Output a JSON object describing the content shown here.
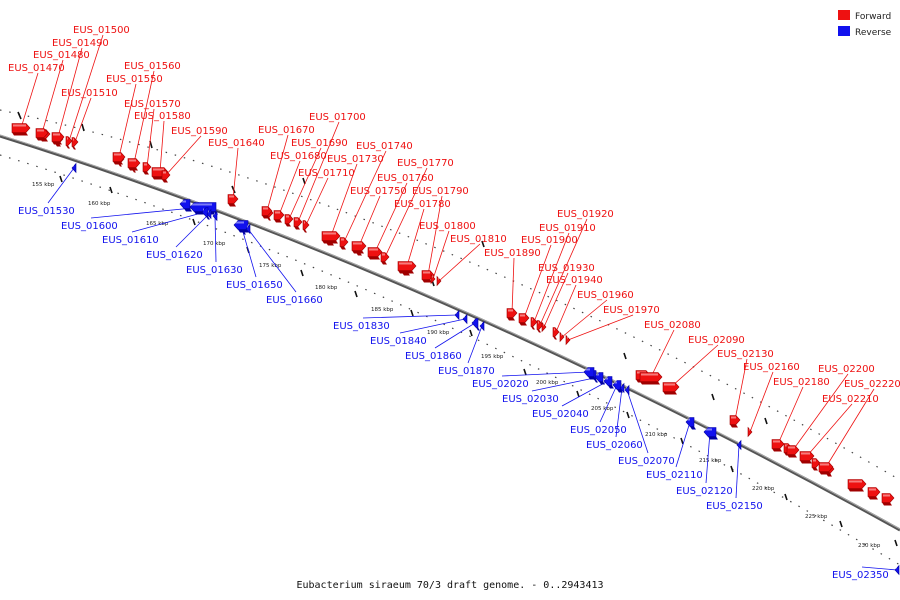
{
  "legend": {
    "forward": {
      "label": "Forward",
      "color": "#ee1111"
    },
    "reverse": {
      "label": "Reverse",
      "color": "#1111ee"
    }
  },
  "caption": "Eubacterium siraeum 70/3 draft genome. - 0..2943413",
  "ticks": [
    {
      "kbp": 155,
      "label": "155 kbp"
    },
    {
      "kbp": 160,
      "label": "160 kbp"
    },
    {
      "kbp": 165,
      "label": "165 kbp"
    },
    {
      "kbp": 170,
      "label": "170 kbp"
    },
    {
      "kbp": 175,
      "label": "175 kbp"
    },
    {
      "kbp": 180,
      "label": "180 kbp"
    },
    {
      "kbp": 185,
      "label": "185 kbp"
    },
    {
      "kbp": 190,
      "label": "190 kbp"
    },
    {
      "kbp": 195,
      "label": "195 kbp"
    },
    {
      "kbp": 200,
      "label": "200 kbp"
    },
    {
      "kbp": 205,
      "label": "205 kbp"
    },
    {
      "kbp": 210,
      "label": "210 kbp"
    },
    {
      "kbp": 215,
      "label": "215 kbp"
    },
    {
      "kbp": 220,
      "label": "220 kbp"
    },
    {
      "kbp": 225,
      "label": "225 kbp"
    },
    {
      "kbp": 230,
      "label": "230 kbp"
    }
  ],
  "genes": [
    {
      "name": "EUS_01470",
      "strand": "forward"
    },
    {
      "name": "EUS_01480",
      "strand": "forward"
    },
    {
      "name": "EUS_01490",
      "strand": "forward"
    },
    {
      "name": "EUS_01500",
      "strand": "forward"
    },
    {
      "name": "EUS_01510",
      "strand": "forward"
    },
    {
      "name": "EUS_01530",
      "strand": "reverse"
    },
    {
      "name": "EUS_01550",
      "strand": "forward"
    },
    {
      "name": "EUS_01560",
      "strand": "forward"
    },
    {
      "name": "EUS_01570",
      "strand": "forward"
    },
    {
      "name": "EUS_01580",
      "strand": "forward"
    },
    {
      "name": "EUS_01590",
      "strand": "forward"
    },
    {
      "name": "EUS_01600",
      "strand": "reverse"
    },
    {
      "name": "EUS_01610",
      "strand": "reverse"
    },
    {
      "name": "EUS_01620",
      "strand": "reverse"
    },
    {
      "name": "EUS_01630",
      "strand": "reverse"
    },
    {
      "name": "EUS_01640",
      "strand": "forward"
    },
    {
      "name": "EUS_01650",
      "strand": "reverse"
    },
    {
      "name": "EUS_01660",
      "strand": "reverse"
    },
    {
      "name": "EUS_01670",
      "strand": "forward"
    },
    {
      "name": "EUS_01680",
      "strand": "forward"
    },
    {
      "name": "EUS_01690",
      "strand": "forward"
    },
    {
      "name": "EUS_01700",
      "strand": "forward"
    },
    {
      "name": "EUS_01710",
      "strand": "forward"
    },
    {
      "name": "EUS_01730",
      "strand": "forward"
    },
    {
      "name": "EUS_01740",
      "strand": "forward"
    },
    {
      "name": "EUS_01750",
      "strand": "forward"
    },
    {
      "name": "EUS_01760",
      "strand": "forward"
    },
    {
      "name": "EUS_01770",
      "strand": "forward"
    },
    {
      "name": "EUS_01780",
      "strand": "forward"
    },
    {
      "name": "EUS_01790",
      "strand": "forward"
    },
    {
      "name": "EUS_01800",
      "strand": "forward"
    },
    {
      "name": "EUS_01810",
      "strand": "forward"
    },
    {
      "name": "EUS_01830",
      "strand": "reverse"
    },
    {
      "name": "EUS_01840",
      "strand": "reverse"
    },
    {
      "name": "EUS_01860",
      "strand": "reverse"
    },
    {
      "name": "EUS_01870",
      "strand": "reverse"
    },
    {
      "name": "EUS_01890",
      "strand": "forward"
    },
    {
      "name": "EUS_01900",
      "strand": "forward"
    },
    {
      "name": "EUS_01910",
      "strand": "forward"
    },
    {
      "name": "EUS_01920",
      "strand": "forward"
    },
    {
      "name": "EUS_01930",
      "strand": "forward"
    },
    {
      "name": "EUS_01940",
      "strand": "forward"
    },
    {
      "name": "EUS_01960",
      "strand": "forward"
    },
    {
      "name": "EUS_01970",
      "strand": "forward"
    },
    {
      "name": "EUS_02020",
      "strand": "reverse"
    },
    {
      "name": "EUS_02030",
      "strand": "reverse"
    },
    {
      "name": "EUS_02040",
      "strand": "reverse"
    },
    {
      "name": "EUS_02050",
      "strand": "reverse"
    },
    {
      "name": "EUS_02060",
      "strand": "reverse"
    },
    {
      "name": "EUS_02070",
      "strand": "reverse"
    },
    {
      "name": "EUS_02080",
      "strand": "forward"
    },
    {
      "name": "EUS_02090",
      "strand": "forward"
    },
    {
      "name": "EUS_02110",
      "strand": "reverse"
    },
    {
      "name": "EUS_02120",
      "strand": "reverse"
    },
    {
      "name": "EUS_02130",
      "strand": "forward"
    },
    {
      "name": "EUS_02150",
      "strand": "reverse"
    },
    {
      "name": "EUS_02160",
      "strand": "forward"
    },
    {
      "name": "EUS_02180",
      "strand": "forward"
    },
    {
      "name": "EUS_02200",
      "strand": "forward"
    },
    {
      "name": "EUS_02210",
      "strand": "forward"
    },
    {
      "name": "EUS_02220",
      "strand": "forward"
    },
    {
      "name": "EUS_02350",
      "strand": "reverse"
    }
  ]
}
